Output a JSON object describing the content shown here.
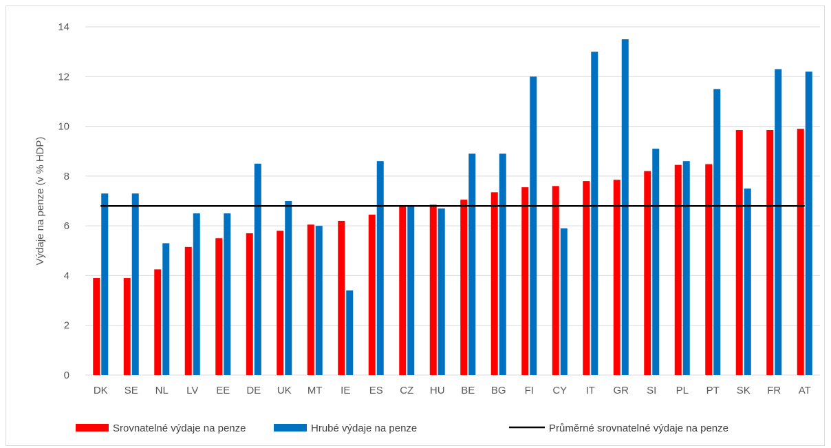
{
  "chart_data": {
    "type": "bar",
    "ylabel": "Výdaje na penze (v % HDP)",
    "xlabel": "",
    "ylim": [
      0,
      14
    ],
    "yticks": [
      0,
      2,
      4,
      6,
      8,
      10,
      12,
      14
    ],
    "ytick_labels": [
      "0",
      "2",
      "4",
      "6",
      "8",
      "10",
      "12",
      "14"
    ],
    "grid": true,
    "legend_position": "bottom",
    "categories": [
      "DK",
      "SE",
      "NL",
      "LV",
      "EE",
      "DE",
      "UK",
      "MT",
      "IE",
      "ES",
      "CZ",
      "HU",
      "BE",
      "BG",
      "FI",
      "CY",
      "IT",
      "GR",
      "SI",
      "PL",
      "PT",
      "SK",
      "FR",
      "AT"
    ],
    "series": [
      {
        "name": "Srovnatelné výdaje na penze",
        "color": "#ff0000",
        "values": [
          3.9,
          3.9,
          4.25,
          5.15,
          5.5,
          5.7,
          5.8,
          6.05,
          6.2,
          6.45,
          6.8,
          6.85,
          7.05,
          7.35,
          7.55,
          7.6,
          7.8,
          7.85,
          8.2,
          8.45,
          8.48,
          9.85,
          9.85,
          9.9
        ]
      },
      {
        "name": "Hrubé výdaje na penze",
        "color": "#0070c0",
        "values": [
          7.3,
          7.3,
          5.3,
          6.5,
          6.5,
          8.5,
          7.0,
          6.0,
          3.4,
          8.6,
          6.8,
          6.7,
          8.9,
          8.9,
          12.0,
          5.9,
          13.0,
          13.5,
          9.1,
          8.6,
          11.5,
          7.5,
          12.3,
          12.2
        ]
      }
    ],
    "average_line": {
      "name": "Průměrné srovnatelné výdaje na penze",
      "value": 6.8,
      "color": "#000000"
    }
  }
}
